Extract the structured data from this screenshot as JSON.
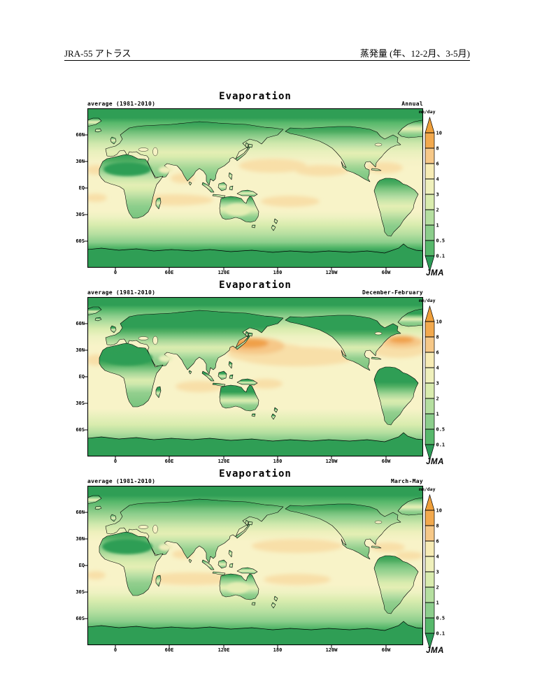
{
  "header": {
    "left_title": "JRA-55 アトラス",
    "right_title": "蒸発量 (年、12-2月、3-5月)"
  },
  "panels": [
    {
      "title": "Evaporation",
      "stat_label": "average (1981-2010)",
      "period_label": "Annual",
      "logo": "JMA"
    },
    {
      "title": "Evaporation",
      "stat_label": "average (1981-2010)",
      "period_label": "December-February",
      "logo": "JMA"
    },
    {
      "title": "Evaporation",
      "stat_label": "average (1981-2010)",
      "period_label": "March-May",
      "logo": "JMA"
    }
  ],
  "axes": {
    "lon_labels": [
      "0",
      "60E",
      "120E",
      "180",
      "120W",
      "60W"
    ],
    "lat_labels": [
      "60N",
      "30N",
      "EQ",
      "30S",
      "60S"
    ]
  },
  "colorbar": {
    "unit": "mm/day",
    "tick_labels": [
      "10",
      "8",
      "6",
      "4",
      "3",
      "2",
      "1",
      "0.5",
      "0.1"
    ],
    "segment_colors": [
      "#f2a94e",
      "#f6c888",
      "#f7ecb5",
      "#eff0bc",
      "#d9ecae",
      "#b5dfa0",
      "#8cce8c",
      "#57b86b"
    ],
    "arrow_top_color": "#ef9f3a",
    "arrow_bottom_color": "#2c9b57"
  },
  "chart_data": [
    {
      "type": "heatmap",
      "title": "Evaporation",
      "period": "Annual",
      "statistic": "average (1981-2010)",
      "unit": "mm/day",
      "contour_levels": [
        0.1,
        0.5,
        1,
        2,
        3,
        4,
        6,
        8,
        10
      ],
      "x_ticks": [
        "0",
        "60E",
        "120E",
        "180",
        "120W",
        "60W"
      ],
      "y_ticks": [
        "60N",
        "30N",
        "EQ",
        "30S",
        "60S"
      ],
      "palette_low_to_high": [
        "#2c9b57",
        "#57b86b",
        "#8cce8c",
        "#b5dfa0",
        "#d9ecae",
        "#eff0bc",
        "#f7ecb5",
        "#f6c888",
        "#f2a94e",
        "#ef9f3a"
      ],
      "features": [
        "Minimum evaporation (below 0.5 mm/day) over Arctic, Antarctic and the Sahara",
        "4-6 mm/day over subtropical oceans with patches above 6 mm/day near 10-25N and 10-20S",
        "1-3 mm/day over mid-latitude continents, decreasing poleward"
      ],
      "shading": {
        "ocean_stops": [
          [
            0,
            "#2f9e55"
          ],
          [
            6,
            "#2f9e55"
          ],
          [
            9,
            "#57b86b"
          ],
          [
            13,
            "#79c47e"
          ],
          [
            17,
            "#a5d796"
          ],
          [
            22,
            "#cfe8ac"
          ],
          [
            27,
            "#e8f0bc"
          ],
          [
            33,
            "#f5f2c6"
          ],
          [
            38,
            "#f8f3c8"
          ],
          [
            64,
            "#f8f3c8"
          ],
          [
            68,
            "#eef2c2"
          ],
          [
            73,
            "#d9ecae"
          ],
          [
            79,
            "#b5dfa0"
          ],
          [
            84,
            "#8cce8c"
          ],
          [
            87,
            "#57b86b"
          ],
          [
            90,
            "#2f9e55"
          ],
          [
            100,
            "#2f9e55"
          ]
        ],
        "land_stops": [
          [
            0,
            "#2f9e55"
          ],
          [
            10,
            "#4fae62"
          ],
          [
            16,
            "#6fbf78"
          ],
          [
            24,
            "#93cf8e"
          ],
          [
            32,
            "#b3dda2"
          ],
          [
            40,
            "#cfe8ac"
          ],
          [
            48,
            "#e4eeb4"
          ],
          [
            55,
            "#d9ecae"
          ],
          [
            63,
            "#c2e2a6"
          ],
          [
            72,
            "#a5d796"
          ],
          [
            82,
            "#8cce8c"
          ],
          [
            100,
            "#79c47e"
          ]
        ],
        "ocean_blobs": [
          [
            265,
            82,
            48,
            10,
            "#f8dfa8"
          ],
          [
            335,
            89,
            38,
            8,
            "#f8dfa8"
          ],
          [
            425,
            85,
            26,
            8,
            "#f8dfa8"
          ],
          [
            136,
            100,
            17,
            7,
            "#f8dfa8"
          ],
          [
            125,
            131,
            55,
            8,
            "#f8dfa8"
          ],
          [
            290,
            133,
            42,
            8,
            "#f8dfa8"
          ],
          [
            12,
            128,
            16,
            6,
            "#f8dfa8"
          ],
          [
            12,
            88,
            14,
            7,
            "#f8dfa8"
          ]
        ],
        "land_blobs": [
          [
            57,
            87,
            34,
            10,
            "#2f9e55"
          ],
          [
            112,
            88,
            10,
            5,
            "#f0eebc"
          ],
          [
            215,
            145,
            18,
            9,
            "#e4eeb4"
          ]
        ]
      }
    },
    {
      "type": "heatmap",
      "title": "Evaporation",
      "period": "December-February",
      "statistic": "average (1981-2010)",
      "unit": "mm/day",
      "contour_levels": [
        0.1,
        0.5,
        1,
        2,
        3,
        4,
        6,
        8,
        10
      ],
      "x_ticks": [
        "0",
        "60E",
        "120E",
        "180",
        "120W",
        "60W"
      ],
      "y_ticks": [
        "60N",
        "30N",
        "EQ",
        "30S",
        "60S"
      ],
      "palette_low_to_high": [
        "#2c9b57",
        "#57b86b",
        "#8cce8c",
        "#b5dfa0",
        "#d9ecae",
        "#eff0bc",
        "#f7ecb5",
        "#f6c888",
        "#f2a94e",
        "#ef9f3a"
      ],
      "features": [
        "Maxima above 8 mm/day over the Kuroshio (east of Japan) and Gulf Stream (off US east coast)",
        "Very low evaporation over winter Northern Hemisphere continents and Arctic",
        "Broad 4-6 mm/day band over subtropical oceans; Sahara below 0.5 mm/day"
      ],
      "shading": {
        "ocean_stops": [
          [
            0,
            "#2f9e55"
          ],
          [
            5,
            "#2f9e55"
          ],
          [
            8,
            "#57b86b"
          ],
          [
            12,
            "#8cce8c"
          ],
          [
            16,
            "#b5dfa0"
          ],
          [
            20,
            "#d9ecae"
          ],
          [
            25,
            "#eef2c2"
          ],
          [
            31,
            "#f8f3c8"
          ],
          [
            70,
            "#f8f3c8"
          ],
          [
            75,
            "#e8f0bc"
          ],
          [
            80,
            "#d9ecae"
          ],
          [
            85,
            "#b5dfa0"
          ],
          [
            89,
            "#8cce8c"
          ],
          [
            93,
            "#57b86b"
          ],
          [
            96,
            "#2f9e55"
          ],
          [
            100,
            "#2f9e55"
          ]
        ],
        "land_stops": [
          [
            0,
            "#2f9e55"
          ],
          [
            26,
            "#2f9e55"
          ],
          [
            33,
            "#4fae62"
          ],
          [
            40,
            "#79c47e"
          ],
          [
            47,
            "#a5d796"
          ],
          [
            53,
            "#c2e2a6"
          ],
          [
            58,
            "#d9ecae"
          ],
          [
            64,
            "#cfe8ac"
          ],
          [
            70,
            "#b3dda2"
          ],
          [
            78,
            "#93cf8e"
          ],
          [
            100,
            "#79c47e"
          ]
        ],
        "ocean_blobs": [
          [
            300,
            85,
            85,
            14,
            "#f8dfa8"
          ],
          [
            260,
            80,
            60,
            14,
            "#f8dfa8"
          ],
          [
            445,
            75,
            40,
            12,
            "#f8dfa8"
          ],
          [
            160,
            128,
            34,
            8,
            "#f8dfa8"
          ],
          [
            255,
            124,
            24,
            7,
            "#f8dfa8"
          ],
          [
            12,
            90,
            14,
            8,
            "#f8dfa8"
          ],
          [
            240,
            70,
            42,
            12,
            "#f6c888"
          ],
          [
            450,
            64,
            30,
            9,
            "#f6c888"
          ],
          [
            233,
            66,
            26,
            7,
            "#f0a04a"
          ],
          [
            449,
            61,
            18,
            5,
            "#f0a04a"
          ],
          [
            89,
            80,
            3,
            5,
            "#f6c888"
          ]
        ],
        "land_blobs": [
          [
            57,
            87,
            36,
            11,
            "#2f9e55"
          ],
          [
            112,
            88,
            10,
            5,
            "#e8f0bc"
          ]
        ]
      }
    },
    {
      "type": "heatmap",
      "title": "Evaporation",
      "period": "March-May",
      "statistic": "average (1981-2010)",
      "unit": "mm/day",
      "contour_levels": [
        0.1,
        0.5,
        1,
        2,
        3,
        4,
        6,
        8,
        10
      ],
      "x_ticks": [
        "0",
        "60E",
        "120E",
        "180",
        "120W",
        "60W"
      ],
      "y_ticks": [
        "60N",
        "30N",
        "EQ",
        "30S",
        "60S"
      ],
      "palette_low_to_high": [
        "#2c9b57",
        "#57b86b",
        "#8cce8c",
        "#b5dfa0",
        "#d9ecae",
        "#eff0bc",
        "#f7ecb5",
        "#f6c888",
        "#f2a94e",
        "#ef9f3a"
      ],
      "features": [
        "Enhanced 4-6 mm/day band over Southern Hemisphere trade-wind oceans near 10-20S",
        "Low values over Sahara, Arctic and Antarctic",
        "Moderate spring evaporation over Northern Hemisphere continents"
      ],
      "shading": {
        "ocean_stops": [
          [
            0,
            "#2f9e55"
          ],
          [
            6,
            "#2f9e55"
          ],
          [
            10,
            "#57b86b"
          ],
          [
            14,
            "#79c47e"
          ],
          [
            19,
            "#a5d796"
          ],
          [
            24,
            "#cfe8ac"
          ],
          [
            29,
            "#eef0bc"
          ],
          [
            35,
            "#f8f3c8"
          ],
          [
            62,
            "#f8f3c8"
          ],
          [
            67,
            "#eef2c2"
          ],
          [
            72,
            "#d9ecae"
          ],
          [
            79,
            "#b5dfa0"
          ],
          [
            85,
            "#8cce8c"
          ],
          [
            89,
            "#57b86b"
          ],
          [
            92,
            "#2f9e55"
          ],
          [
            100,
            "#2f9e55"
          ]
        ],
        "land_stops": [
          [
            0,
            "#2f9e55"
          ],
          [
            9,
            "#4fae62"
          ],
          [
            15,
            "#6fbf78"
          ],
          [
            23,
            "#8cce8c"
          ],
          [
            31,
            "#a5d796"
          ],
          [
            39,
            "#c2e2a6"
          ],
          [
            47,
            "#d9ecae"
          ],
          [
            55,
            "#e4eeb4"
          ],
          [
            62,
            "#cfe8ac"
          ],
          [
            70,
            "#b3dda2"
          ],
          [
            80,
            "#93cf8e"
          ],
          [
            100,
            "#79c47e"
          ]
        ],
        "ocean_blobs": [
          [
            150,
            133,
            65,
            9,
            "#f8dfa8"
          ],
          [
            300,
            134,
            48,
            8,
            "#f8dfa8"
          ],
          [
            300,
            86,
            65,
            10,
            "#f8dfa8"
          ],
          [
            136,
            98,
            15,
            6,
            "#f8dfa8"
          ],
          [
            430,
            88,
            24,
            7,
            "#f8dfa8"
          ],
          [
            12,
            128,
            14,
            6,
            "#f8dfa8"
          ],
          [
            460,
            100,
            20,
            6,
            "#f8dfa8"
          ]
        ],
        "land_blobs": [
          [
            57,
            87,
            36,
            11,
            "#2f9e55"
          ],
          [
            112,
            88,
            10,
            5,
            "#f0eebc"
          ],
          [
            215,
            146,
            16,
            8,
            "#e4eeb4"
          ]
        ]
      }
    }
  ]
}
